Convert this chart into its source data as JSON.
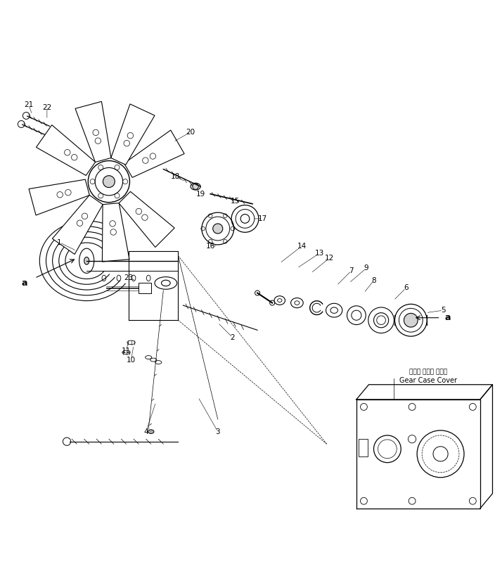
{
  "title": "",
  "bg_color": "#ffffff",
  "line_color": "#000000",
  "fig_width": 7.04,
  "fig_height": 8.26,
  "dpi": 100,
  "gear_case_label_jp": "ギヤー ケース カバー",
  "gear_case_label_en": "Gear Case Cover"
}
